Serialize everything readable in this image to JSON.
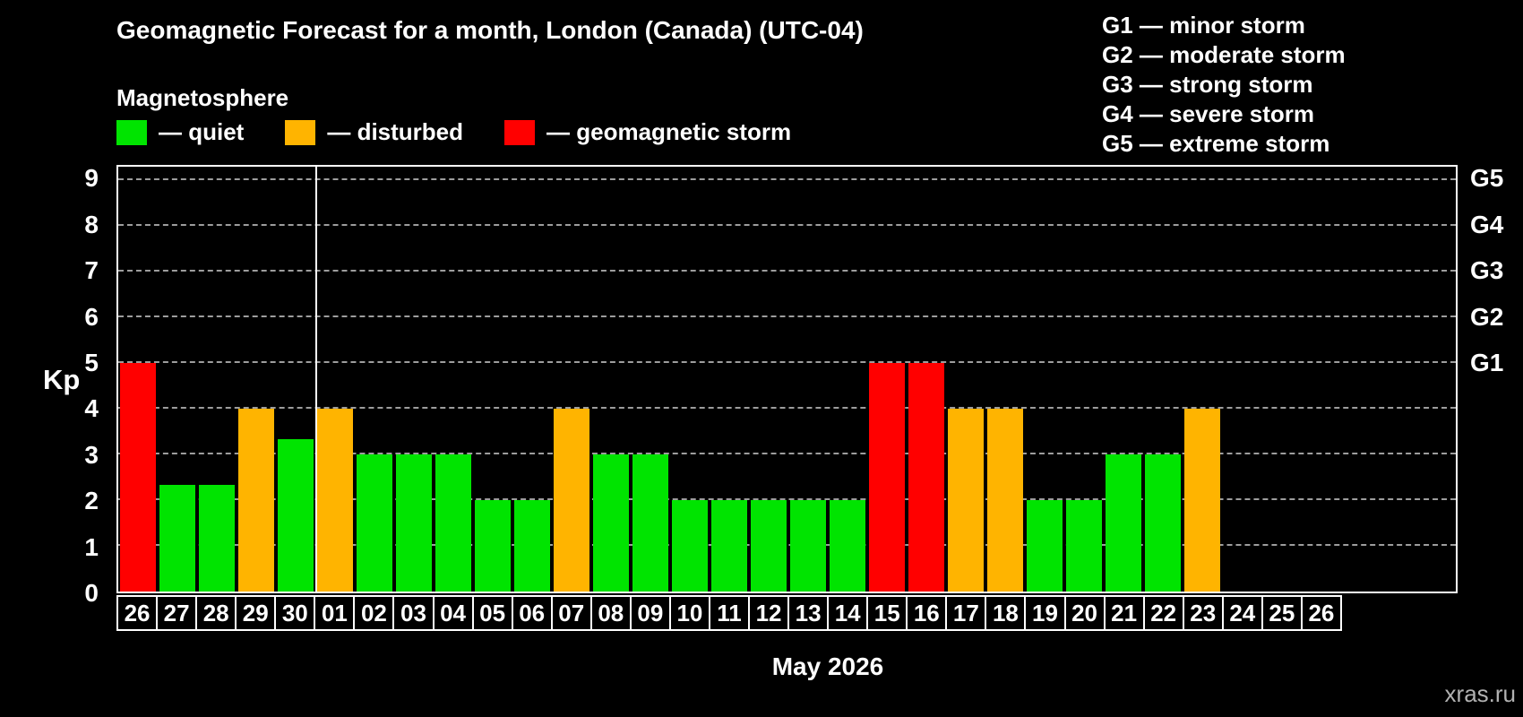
{
  "header": {
    "title": "Geomagnetic Forecast for a month, London (Canada) (UTC-04)",
    "subtitle": "Magnetosphere"
  },
  "legend": {
    "items": [
      {
        "label": "— quiet",
        "level": "quiet"
      },
      {
        "label": "— disturbed",
        "level": "disturbed"
      },
      {
        "label": "— geomagnetic storm",
        "level": "storm"
      }
    ]
  },
  "storm_legend": {
    "items": [
      "G1 — minor storm",
      "G2 — moderate storm",
      "G3 — strong storm",
      "G4 — severe storm",
      "G5 — extreme storm"
    ]
  },
  "chart_data": {
    "type": "bar",
    "title": "Geomagnetic Forecast for a month, London (Canada) (UTC-04)",
    "ylabel": "Kp",
    "xlabel": "May 2026",
    "ylim": [
      0,
      9.3
    ],
    "yticks": [
      0,
      1,
      2,
      3,
      4,
      5,
      6,
      7,
      8,
      9
    ],
    "grid": "horizontal dashed gray lines at integer Kp values",
    "legend_position": "top",
    "right_axis_ticks": [
      {
        "label": "G1",
        "value": 5
      },
      {
        "label": "G2",
        "value": 6
      },
      {
        "label": "G3",
        "value": 7
      },
      {
        "label": "G4",
        "value": 8
      },
      {
        "label": "G5",
        "value": 9
      }
    ],
    "colors": {
      "quiet": "#00e400",
      "disturbed": "#ffb400",
      "storm": "#ff0000"
    },
    "month_separator_after_index": 4,
    "bars": [
      {
        "date": "26",
        "kp": 5,
        "level": "storm"
      },
      {
        "date": "27",
        "kp": 2.33,
        "level": "quiet"
      },
      {
        "date": "28",
        "kp": 2.33,
        "level": "quiet"
      },
      {
        "date": "29",
        "kp": 4,
        "level": "disturbed"
      },
      {
        "date": "30",
        "kp": 3.33,
        "level": "quiet"
      },
      {
        "date": "01",
        "kp": 4,
        "level": "disturbed"
      },
      {
        "date": "02",
        "kp": 3,
        "level": "quiet"
      },
      {
        "date": "03",
        "kp": 3,
        "level": "quiet"
      },
      {
        "date": "04",
        "kp": 3,
        "level": "quiet"
      },
      {
        "date": "05",
        "kp": 2,
        "level": "quiet"
      },
      {
        "date": "06",
        "kp": 2,
        "level": "quiet"
      },
      {
        "date": "07",
        "kp": 4,
        "level": "disturbed"
      },
      {
        "date": "08",
        "kp": 3,
        "level": "quiet"
      },
      {
        "date": "09",
        "kp": 3,
        "level": "quiet"
      },
      {
        "date": "10",
        "kp": 2,
        "level": "quiet"
      },
      {
        "date": "11",
        "kp": 2,
        "level": "quiet"
      },
      {
        "date": "12",
        "kp": 2,
        "level": "quiet"
      },
      {
        "date": "13",
        "kp": 2,
        "level": "quiet"
      },
      {
        "date": "14",
        "kp": 2,
        "level": "quiet"
      },
      {
        "date": "15",
        "kp": 5,
        "level": "storm"
      },
      {
        "date": "16",
        "kp": 5,
        "level": "storm"
      },
      {
        "date": "17",
        "kp": 4,
        "level": "disturbed"
      },
      {
        "date": "18",
        "kp": 4,
        "level": "disturbed"
      },
      {
        "date": "19",
        "kp": 2,
        "level": "quiet"
      },
      {
        "date": "20",
        "kp": 2,
        "level": "quiet"
      },
      {
        "date": "21",
        "kp": 3,
        "level": "quiet"
      },
      {
        "date": "22",
        "kp": 3,
        "level": "quiet"
      },
      {
        "date": "23",
        "kp": 4,
        "level": "disturbed"
      },
      {
        "date": "24",
        "kp": null,
        "level": null
      },
      {
        "date": "25",
        "kp": null,
        "level": null
      },
      {
        "date": "26",
        "kp": null,
        "level": null
      }
    ]
  },
  "watermark": "xras.ru"
}
